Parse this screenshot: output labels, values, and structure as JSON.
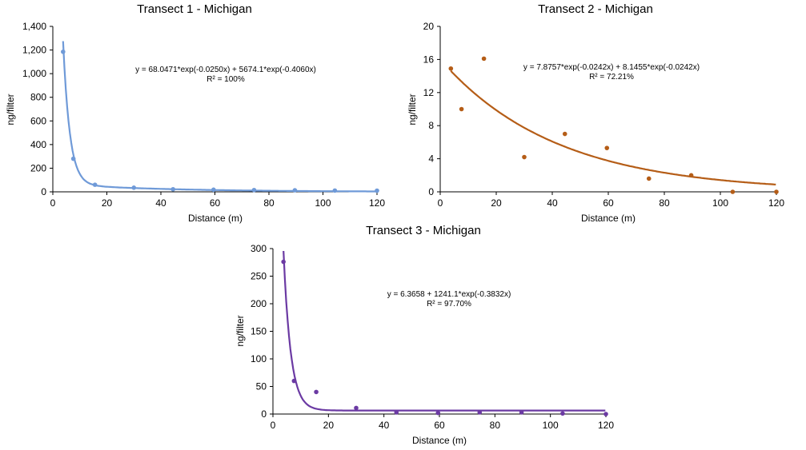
{
  "chart_data": [
    {
      "type": "scatter",
      "title": "Transect 1 - Michigan",
      "xlabel": "Distance (m)",
      "ylabel": "ng/filter",
      "xlim": [
        0,
        120
      ],
      "ylim": [
        0,
        1400
      ],
      "xticks": [
        "0",
        "20",
        "40",
        "60",
        "80",
        "100",
        "120"
      ],
      "yticks": [
        "0",
        "200",
        "400",
        "600",
        "800",
        "1,000",
        "1,200",
        "1,400"
      ],
      "grid": false,
      "legend": "none",
      "color": "#6f9ad8",
      "series": [
        {
          "x": [
            3.8,
            7.6,
            15.6,
            30,
            44.5,
            59.5,
            74.5,
            89.6,
            104.4,
            120
          ],
          "y": [
            1185,
            280,
            60,
            35,
            22,
            18,
            15,
            13,
            11,
            10
          ]
        }
      ],
      "trendline": {
        "equation": "y = 68.0471*exp(-0.0250x) + 5674.1*exp(-0.4060x)",
        "r2": "R² = 100%"
      }
    },
    {
      "type": "scatter",
      "title": "Transect 2 - Michigan",
      "xlabel": "Distance (m)",
      "ylabel": "ng/filter",
      "xlim": [
        0,
        120
      ],
      "ylim": [
        0,
        20
      ],
      "xticks": [
        "0",
        "20",
        "40",
        "60",
        "80",
        "100",
        "120"
      ],
      "yticks": [
        "0",
        "4",
        "8",
        "12",
        "16",
        "20"
      ],
      "grid": false,
      "legend": "none",
      "color": "#b55d17",
      "series": [
        {
          "x": [
            3.8,
            7.6,
            15.6,
            30,
            44.5,
            59.5,
            74.5,
            89.6,
            104.4,
            120
          ],
          "y": [
            14.9,
            10.0,
            16.1,
            4.2,
            7.0,
            5.3,
            1.6,
            2.0,
            0.0,
            0.0
          ]
        }
      ],
      "trendline": {
        "equation": "y = 7.8757*exp(-0.0242x) + 8.1455*exp(-0.0242x)",
        "r2": "R² = 72.21%"
      }
    },
    {
      "type": "scatter",
      "title": "Transect 3 - Michigan",
      "xlabel": "Distance (m)",
      "ylabel": "ng/filter",
      "xlim": [
        0,
        120
      ],
      "ylim": [
        0,
        300
      ],
      "xticks": [
        "0",
        "20",
        "40",
        "60",
        "80",
        "100",
        "120"
      ],
      "yticks": [
        "0",
        "50",
        "100",
        "150",
        "200",
        "250",
        "300"
      ],
      "grid": false,
      "legend": "none",
      "color": "#6b3aa3",
      "series": [
        {
          "x": [
            3.8,
            7.6,
            15.6,
            30,
            44.5,
            59.5,
            74.5,
            89.6,
            104.4,
            120
          ],
          "y": [
            276,
            60,
            40,
            11,
            3,
            2,
            3,
            3,
            1,
            0
          ]
        }
      ],
      "trendline": {
        "equation": "y = 6.3658 + 1241.1*exp(-0.3832x)",
        "r2": "R² = 97.70%"
      }
    }
  ]
}
